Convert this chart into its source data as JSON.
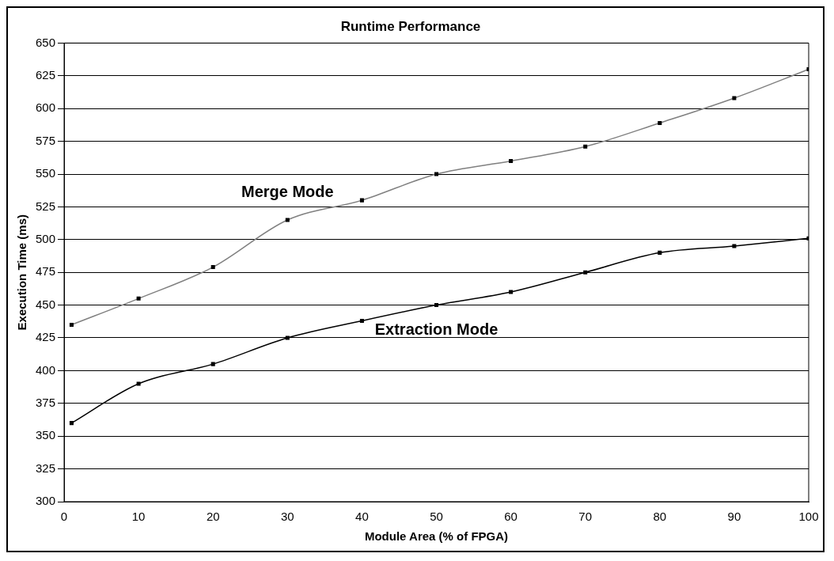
{
  "chart_data": {
    "type": "line",
    "title": "Runtime Performance",
    "xlabel": "Module Area (% of FPGA)",
    "ylabel": "Execution Time (ms)",
    "x": [
      1,
      10,
      20,
      30,
      40,
      50,
      60,
      70,
      80,
      90,
      100
    ],
    "series": [
      {
        "name": "Merge Mode",
        "color": "#808080",
        "values": [
          435,
          455,
          479,
          515,
          530,
          550,
          560,
          571,
          589,
          608,
          630
        ]
      },
      {
        "name": "Extraction Mode",
        "color": "#000000",
        "values": [
          360,
          390,
          405,
          425,
          438,
          450,
          460,
          475,
          490,
          495,
          501
        ]
      }
    ],
    "xlim": [
      0,
      100
    ],
    "xticks": [
      0,
      10,
      20,
      30,
      40,
      50,
      60,
      70,
      80,
      90,
      100
    ],
    "ylim": [
      300,
      650
    ],
    "yticks": [
      300,
      325,
      350,
      375,
      400,
      425,
      450,
      475,
      500,
      525,
      550,
      575,
      600,
      625,
      650
    ],
    "grid": "y",
    "legend": false,
    "marker": "square",
    "line_style": "solid"
  }
}
